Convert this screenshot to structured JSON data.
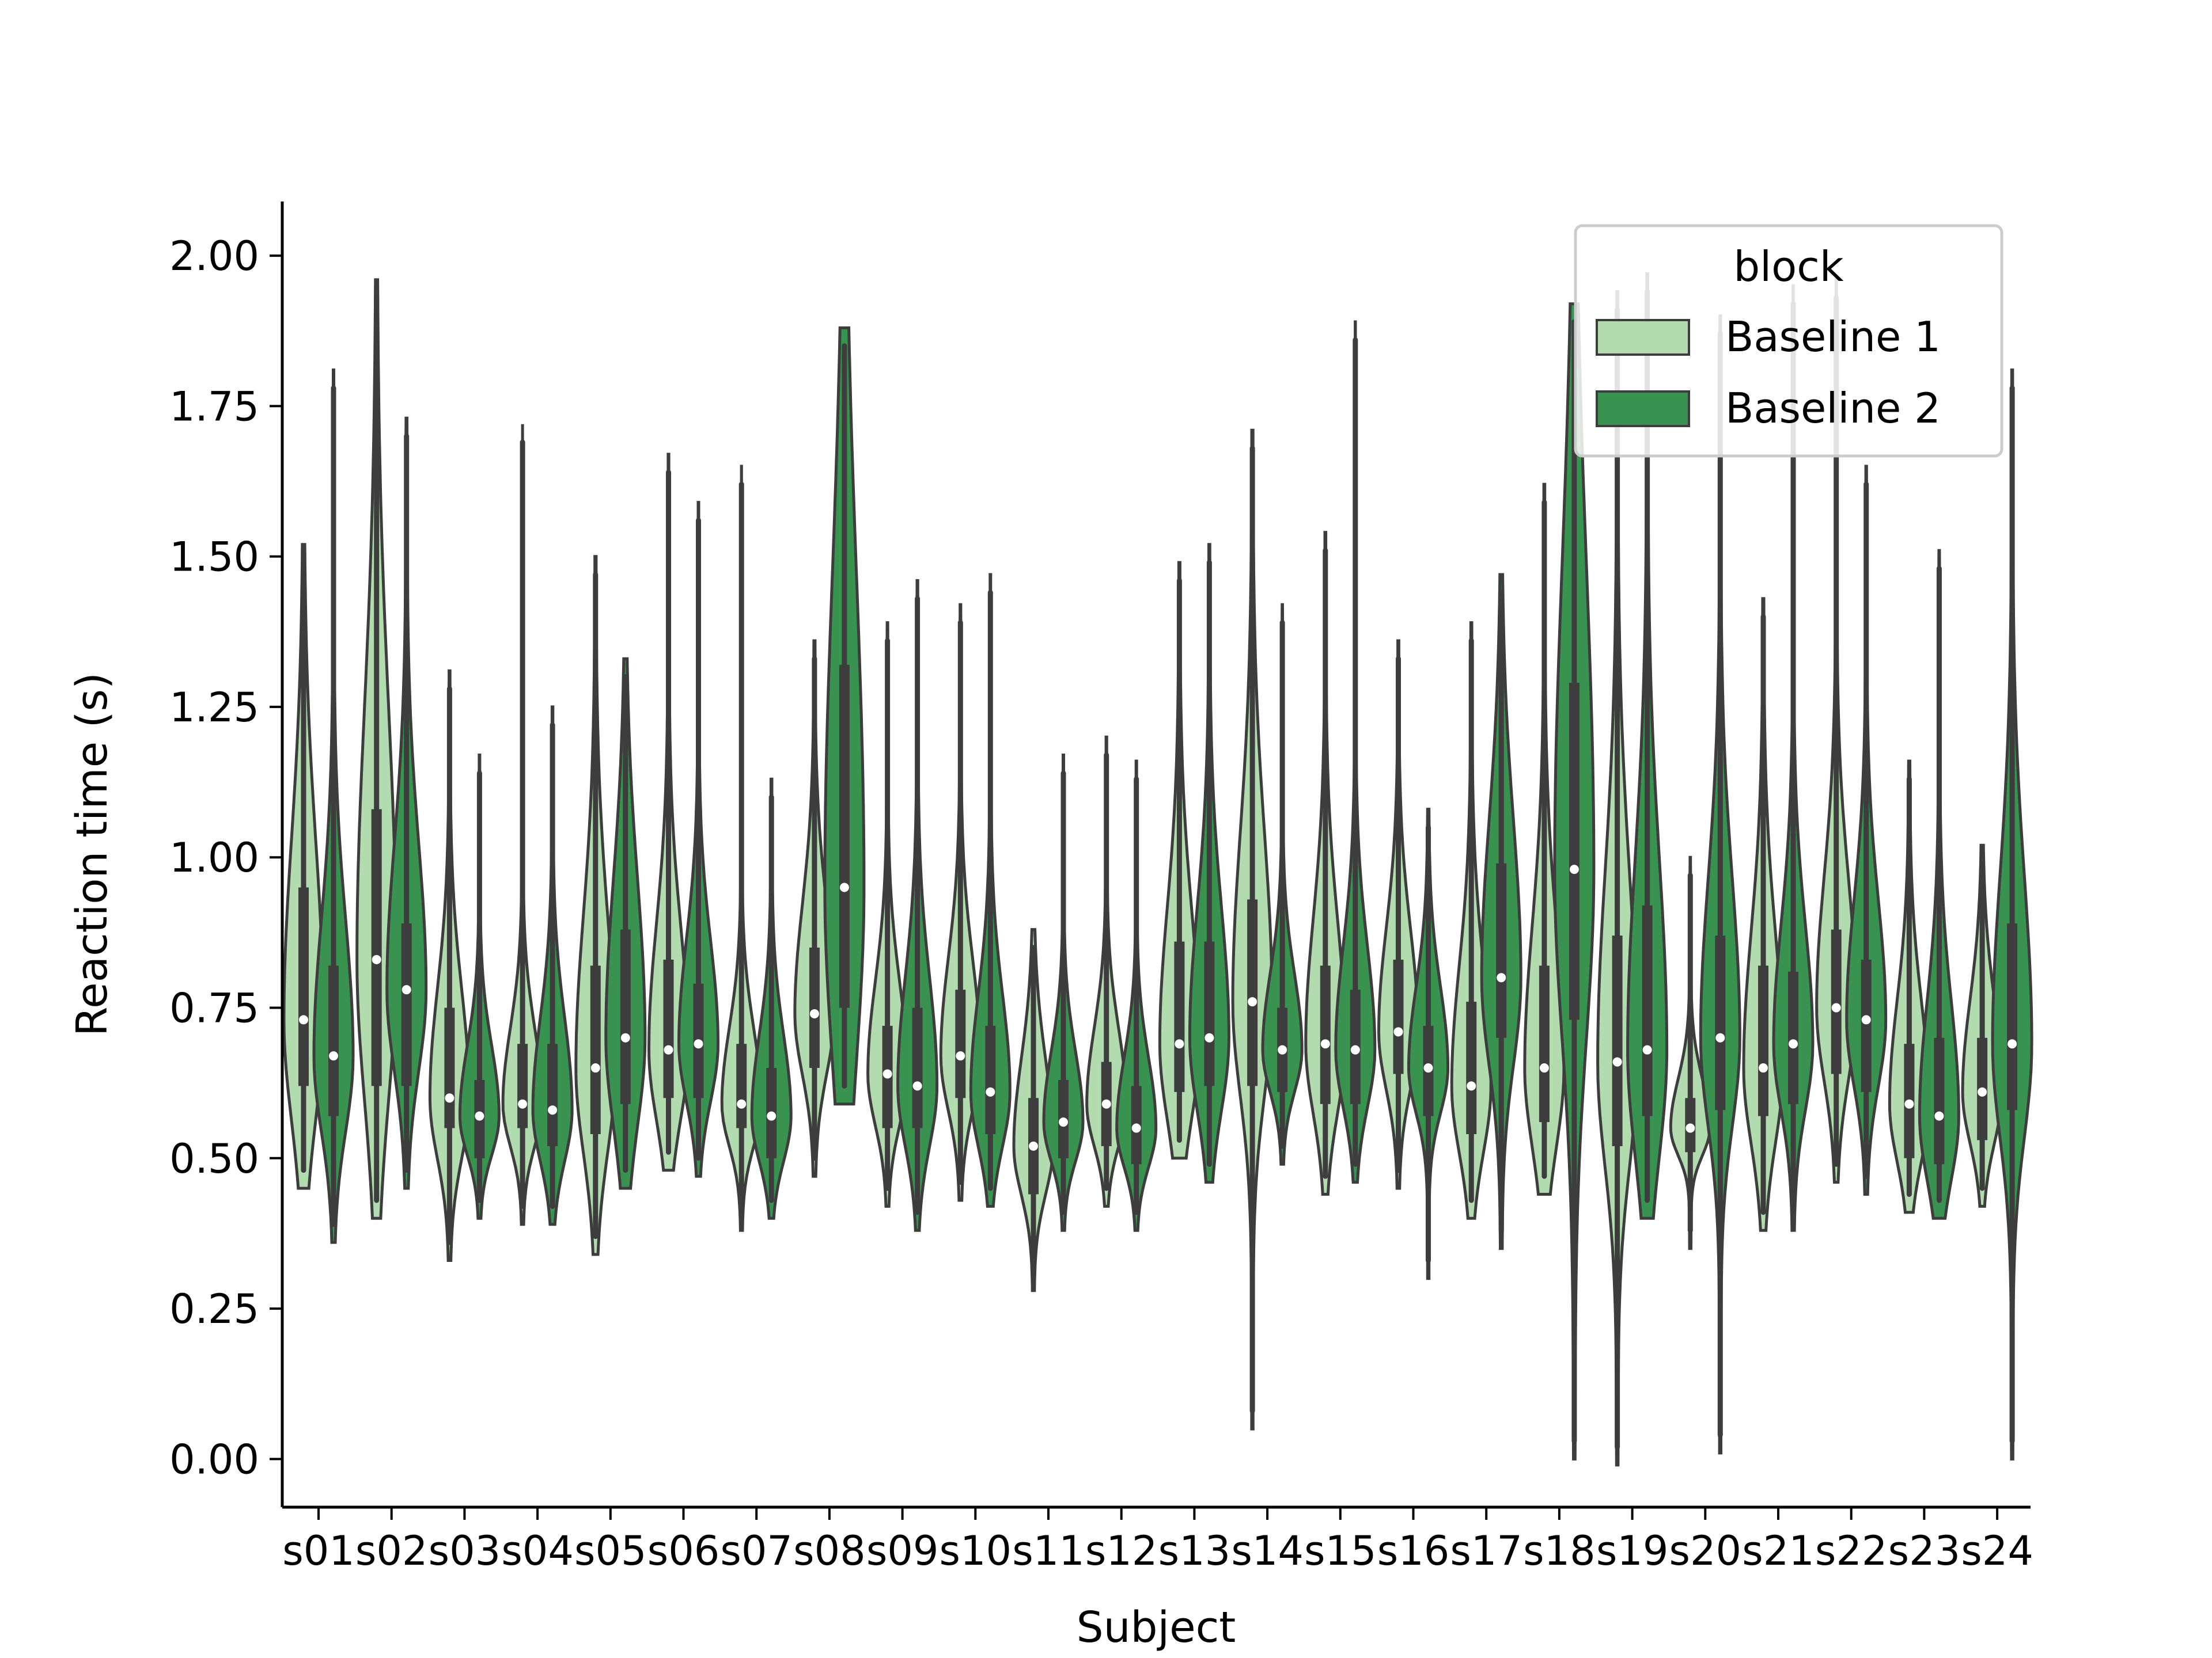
{
  "chart_data": {
    "type": "violin",
    "xlabel": "Subject",
    "ylabel": "Reaction time (s)",
    "ylim": [
      -0.08,
      2.09
    ],
    "yticks": [
      "0.00",
      "0.25",
      "0.50",
      "0.75",
      "1.00",
      "1.25",
      "1.50",
      "1.75",
      "2.00"
    ],
    "categories": [
      "s01",
      "s02",
      "s03",
      "s04",
      "s05",
      "s06",
      "s07",
      "s08",
      "s09",
      "s10",
      "s11",
      "s12",
      "s13",
      "s14",
      "s15",
      "s16",
      "s17",
      "s18",
      "s19",
      "s20",
      "s21",
      "s22",
      "s23",
      "s24"
    ],
    "legend": {
      "title": "block",
      "position": "upper-right"
    },
    "series": [
      {
        "name": "Baseline 1",
        "color": "#b2dbb0",
        "min": [
          0.48,
          0.43,
          0.36,
          0.42,
          0.37,
          0.51,
          0.41,
          0.5,
          0.45,
          0.46,
          0.31,
          0.45,
          0.53,
          0.08,
          0.47,
          0.48,
          0.43,
          0.47,
          0.02,
          0.38,
          0.41,
          0.49,
          0.44,
          0.45
        ],
        "q1": [
          0.62,
          0.62,
          0.55,
          0.55,
          0.54,
          0.6,
          0.55,
          0.65,
          0.55,
          0.6,
          0.44,
          0.52,
          0.61,
          0.62,
          0.59,
          0.64,
          0.54,
          0.56,
          0.52,
          0.51,
          0.57,
          0.64,
          0.5,
          0.53
        ],
        "median": [
          0.73,
          0.83,
          0.6,
          0.59,
          0.65,
          0.68,
          0.59,
          0.74,
          0.64,
          0.67,
          0.52,
          0.59,
          0.69,
          0.76,
          0.69,
          0.71,
          0.62,
          0.65,
          0.66,
          0.55,
          0.65,
          0.75,
          0.59,
          0.61
        ],
        "q3": [
          0.95,
          1.08,
          0.75,
          0.69,
          0.82,
          0.83,
          0.69,
          0.85,
          0.72,
          0.78,
          0.6,
          0.66,
          0.86,
          0.93,
          0.82,
          0.83,
          0.76,
          0.82,
          0.87,
          0.6,
          0.82,
          0.88,
          0.69,
          0.7
        ],
        "max": [
          1.49,
          1.93,
          1.28,
          1.69,
          1.47,
          1.64,
          1.62,
          1.33,
          1.36,
          1.39,
          0.85,
          1.17,
          1.46,
          1.68,
          1.51,
          1.33,
          1.36,
          1.59,
          1.91,
          0.97,
          1.4,
          1.93,
          1.13,
          0.99
        ]
      },
      {
        "name": "Baseline 2",
        "color": "#3a9251",
        "min": [
          0.39,
          0.48,
          0.43,
          0.42,
          0.48,
          0.5,
          0.43,
          0.62,
          0.41,
          0.45,
          0.41,
          0.41,
          0.49,
          0.52,
          0.49,
          0.33,
          0.38,
          0.03,
          0.43,
          0.04,
          0.41,
          0.47,
          0.43,
          0.03
        ],
        "q1": [
          0.57,
          0.62,
          0.5,
          0.52,
          0.59,
          0.6,
          0.5,
          0.75,
          0.55,
          0.54,
          0.5,
          0.49,
          0.62,
          0.61,
          0.59,
          0.57,
          0.7,
          0.73,
          0.57,
          0.58,
          0.59,
          0.61,
          0.49,
          0.58
        ],
        "median": [
          0.67,
          0.78,
          0.57,
          0.58,
          0.7,
          0.69,
          0.57,
          0.95,
          0.62,
          0.61,
          0.56,
          0.55,
          0.7,
          0.68,
          0.68,
          0.65,
          0.8,
          0.98,
          0.68,
          0.7,
          0.69,
          0.73,
          0.57,
          0.69
        ],
        "q3": [
          0.82,
          0.89,
          0.63,
          0.69,
          0.88,
          0.79,
          0.65,
          1.32,
          0.75,
          0.72,
          0.63,
          0.62,
          0.86,
          0.75,
          0.78,
          0.72,
          0.99,
          1.29,
          0.92,
          0.87,
          0.81,
          0.83,
          0.7,
          0.89
        ],
        "max": [
          1.78,
          1.7,
          1.14,
          1.22,
          1.3,
          1.56,
          1.1,
          1.85,
          1.43,
          1.44,
          1.14,
          1.13,
          1.49,
          1.39,
          1.86,
          1.05,
          1.44,
          1.89,
          1.94,
          1.87,
          1.92,
          1.62,
          1.48,
          1.78
        ]
      }
    ]
  }
}
